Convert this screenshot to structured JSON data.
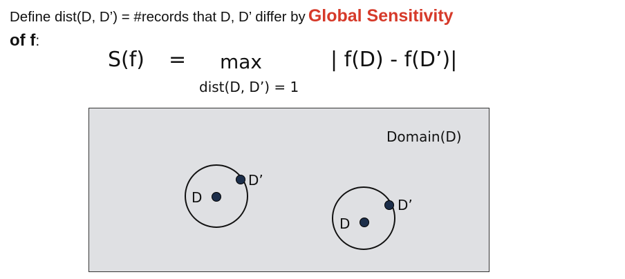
{
  "heading": {
    "text": "Define dist(D, D’) = #records that D, D’ differ by",
    "accent": "Global Sensitivity",
    "accent_color": "#d63a2a",
    "line2_bold": "of f",
    "line2_colon": ":"
  },
  "formula": {
    "lhs": "S(f)",
    "equals": "=",
    "operator": "max",
    "subscript": "dist(D, D’) = 1",
    "rhs": "| f(D) - f(D’)|"
  },
  "diagram": {
    "domain_label": "Domain(D)",
    "neighborhoods": [
      {
        "center_label": "D",
        "neighbor_label": "D’"
      },
      {
        "center_label": "D",
        "neighbor_label": "D’"
      }
    ],
    "point_color": "#1c2e4a",
    "domain_fill": "#dfe0e3"
  }
}
